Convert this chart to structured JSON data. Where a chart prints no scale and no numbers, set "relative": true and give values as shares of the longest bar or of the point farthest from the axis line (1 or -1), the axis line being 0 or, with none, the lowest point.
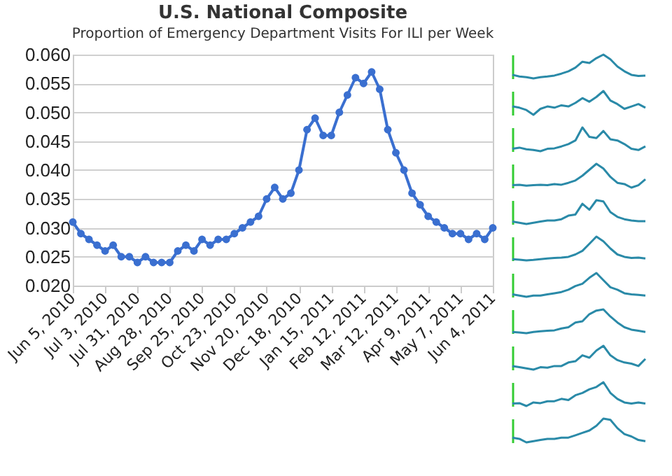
{
  "chart_data": [
    {
      "type": "line",
      "title": "U.S. National Composite",
      "subtitle": "Proportion of Emergency Department Visits For ILI per Week",
      "x": [
        "2010-06-05",
        "2010-06-12",
        "2010-06-19",
        "2010-06-26",
        "2010-07-03",
        "2010-07-10",
        "2010-07-17",
        "2010-07-24",
        "2010-07-31",
        "2010-08-07",
        "2010-08-14",
        "2010-08-21",
        "2010-08-28",
        "2010-09-04",
        "2010-09-11",
        "2010-09-18",
        "2010-09-25",
        "2010-10-02",
        "2010-10-09",
        "2010-10-16",
        "2010-10-23",
        "2010-10-30",
        "2010-11-06",
        "2010-11-13",
        "2010-11-20",
        "2010-11-27",
        "2010-12-04",
        "2010-12-11",
        "2010-12-18",
        "2010-12-25",
        "2011-01-01",
        "2011-01-08",
        "2011-01-15",
        "2011-01-22",
        "2011-01-29",
        "2011-02-05",
        "2011-02-12",
        "2011-02-19",
        "2011-02-26",
        "2011-03-05",
        "2011-03-12",
        "2011-03-19",
        "2011-03-26",
        "2011-04-02",
        "2011-04-09",
        "2011-04-16",
        "2011-04-23",
        "2011-04-30",
        "2011-05-07",
        "2011-05-14",
        "2011-05-21",
        "2011-05-28",
        "2011-06-04"
      ],
      "series": [
        {
          "color": "#3a6fd0",
          "values": [
            0.031,
            0.029,
            0.028,
            0.027,
            0.026,
            0.027,
            0.025,
            0.025,
            0.024,
            0.025,
            0.024,
            0.024,
            0.024,
            0.026,
            0.027,
            0.026,
            0.028,
            0.027,
            0.028,
            0.028,
            0.029,
            0.03,
            0.031,
            0.032,
            0.035,
            0.037,
            0.035,
            0.036,
            0.04,
            0.047,
            0.049,
            0.046,
            0.046,
            0.05,
            0.053,
            0.056,
            0.055,
            0.057,
            0.054,
            0.047,
            0.043,
            0.04,
            0.036,
            0.034,
            0.032,
            0.031,
            0.03,
            0.029,
            0.029,
            0.028,
            0.029,
            0.028,
            0.03
          ]
        }
      ],
      "xlim": [
        "2010-06-05",
        "2011-06-04"
      ],
      "xticks": [
        {
          "value": "2010-06-05",
          "label": "Jun 5, 2010"
        },
        {
          "value": "2010-07-03",
          "label": "Jul 3, 2010"
        },
        {
          "value": "2010-07-31",
          "label": "Jul 31, 2010"
        },
        {
          "value": "2010-08-28",
          "label": "Aug 28, 2010"
        },
        {
          "value": "2010-09-25",
          "label": "Sep 25, 2010"
        },
        {
          "value": "2010-10-23",
          "label": "Oct 23, 2010"
        },
        {
          "value": "2010-11-20",
          "label": "Nov 20, 2010"
        },
        {
          "value": "2010-12-18",
          "label": "Dec 18, 2010"
        },
        {
          "value": "2011-01-15",
          "label": "Jan 15, 2011"
        },
        {
          "value": "2011-02-12",
          "label": "Feb 12, 2011"
        },
        {
          "value": "2011-03-12",
          "label": "Mar 12, 2011"
        },
        {
          "value": "2011-04-09",
          "label": "Apr 9, 2011"
        },
        {
          "value": "2011-05-07",
          "label": "May 7, 2011"
        },
        {
          "value": "2011-06-04",
          "label": "Jun 4, 2011"
        }
      ],
      "ylim": [
        0.02,
        0.06
      ],
      "yticks": [
        {
          "value": 0.02,
          "label": "0.020"
        },
        {
          "value": 0.025,
          "label": "0.025"
        },
        {
          "value": 0.03,
          "label": "0.030"
        },
        {
          "value": 0.035,
          "label": "0.035"
        },
        {
          "value": 0.04,
          "label": "0.040"
        },
        {
          "value": 0.045,
          "label": "0.045"
        },
        {
          "value": 0.05,
          "label": "0.050"
        },
        {
          "value": 0.055,
          "label": "0.055"
        },
        {
          "value": 0.06,
          "label": "0.060"
        }
      ],
      "grid": "y",
      "marker": "circle",
      "line_style": "solid"
    },
    {
      "type": "line",
      "relative": true,
      "categories": [
        null,
        null,
        null,
        null,
        null,
        null,
        null,
        null,
        null,
        null,
        null,
        null,
        null,
        null,
        null,
        null,
        null,
        null,
        null,
        null
      ],
      "series": [
        {
          "color": "#2a8aa8",
          "values": [
            0.15,
            0.08,
            0.05,
            0.0,
            0.05,
            0.08,
            0.12,
            0.2,
            0.3,
            0.45,
            0.7,
            0.65,
            0.85,
            1,
            0.8,
            0.5,
            0.3,
            0.15,
            0.1,
            0.12
          ]
        }
      ]
    },
    {
      "type": "line",
      "relative": true,
      "categories": [
        null,
        null,
        null,
        null,
        null,
        null,
        null,
        null,
        null,
        null,
        null,
        null,
        null,
        null,
        null,
        null,
        null,
        null,
        null,
        null
      ],
      "series": [
        {
          "color": "#2a8aa8",
          "values": [
            0.35,
            0.3,
            0.2,
            0.0,
            0.25,
            0.35,
            0.3,
            0.4,
            0.35,
            0.5,
            0.7,
            0.55,
            0.75,
            1,
            0.6,
            0.45,
            0.25,
            0.35,
            0.45,
            0.3
          ]
        }
      ]
    },
    {
      "type": "line",
      "relative": true,
      "categories": [
        null,
        null,
        null,
        null,
        null,
        null,
        null,
        null,
        null,
        null,
        null,
        null,
        null,
        null,
        null,
        null,
        null,
        null,
        null,
        null
      ],
      "series": [
        {
          "color": "#2a8aa8",
          "values": [
            0.1,
            0.15,
            0.08,
            0.05,
            0.0,
            0.1,
            0.12,
            0.2,
            0.3,
            0.45,
            1,
            0.6,
            0.55,
            0.85,
            0.5,
            0.45,
            0.3,
            0.1,
            0.05,
            0.2
          ]
        }
      ]
    },
    {
      "type": "line",
      "relative": true,
      "categories": [
        null,
        null,
        null,
        null,
        null,
        null,
        null,
        null,
        null,
        null,
        null,
        null,
        null,
        null,
        null,
        null,
        null,
        null,
        null,
        null
      ],
      "series": [
        {
          "color": "#2a8aa8",
          "values": [
            0.1,
            0.12,
            0.08,
            0.1,
            0.12,
            0.1,
            0.15,
            0.12,
            0.2,
            0.3,
            0.5,
            0.75,
            1,
            0.8,
            0.45,
            0.2,
            0.15,
            0.0,
            0.1,
            0.35
          ]
        }
      ]
    },
    {
      "type": "line",
      "relative": true,
      "categories": [
        null,
        null,
        null,
        null,
        null,
        null,
        null,
        null,
        null,
        null,
        null,
        null,
        null,
        null,
        null,
        null,
        null,
        null,
        null,
        null
      ],
      "series": [
        {
          "color": "#2a8aa8",
          "values": [
            0.1,
            0.05,
            0.0,
            0.05,
            0.1,
            0.15,
            0.15,
            0.2,
            0.35,
            0.4,
            0.85,
            0.6,
            1,
            0.95,
            0.5,
            0.3,
            0.2,
            0.15,
            0.12,
            0.12
          ]
        }
      ]
    },
    {
      "type": "line",
      "relative": true,
      "categories": [
        null,
        null,
        null,
        null,
        null,
        null,
        null,
        null,
        null,
        null,
        null,
        null,
        null,
        null,
        null,
        null,
        null,
        null,
        null,
        null
      ],
      "series": [
        {
          "color": "#2a8aa8",
          "values": [
            0.05,
            0.03,
            0.0,
            0.02,
            0.05,
            0.08,
            0.1,
            0.12,
            0.15,
            0.25,
            0.4,
            0.7,
            1,
            0.8,
            0.5,
            0.25,
            0.15,
            0.1,
            0.12,
            0.08
          ]
        }
      ]
    },
    {
      "type": "line",
      "relative": true,
      "categories": [
        null,
        null,
        null,
        null,
        null,
        null,
        null,
        null,
        null,
        null,
        null,
        null,
        null,
        null,
        null,
        null,
        null,
        null,
        null,
        null
      ],
      "series": [
        {
          "color": "#2a8aa8",
          "values": [
            0.1,
            0.05,
            0.0,
            0.05,
            0.05,
            0.1,
            0.15,
            0.2,
            0.3,
            0.45,
            0.55,
            0.8,
            1,
            0.7,
            0.4,
            0.3,
            0.15,
            0.1,
            0.08,
            0.05
          ]
        }
      ]
    },
    {
      "type": "line",
      "relative": true,
      "categories": [
        null,
        null,
        null,
        null,
        null,
        null,
        null,
        null,
        null,
        null,
        null,
        null,
        null,
        null,
        null,
        null,
        null,
        null,
        null,
        null
      ],
      "series": [
        {
          "color": "#2a8aa8",
          "values": [
            0.05,
            0.03,
            0.0,
            0.05,
            0.08,
            0.1,
            0.12,
            0.2,
            0.25,
            0.45,
            0.5,
            0.8,
            0.95,
            1,
            0.7,
            0.45,
            0.25,
            0.15,
            0.1,
            0.05
          ]
        }
      ]
    },
    {
      "type": "line",
      "relative": true,
      "categories": [
        null,
        null,
        null,
        null,
        null,
        null,
        null,
        null,
        null,
        null,
        null,
        null,
        null,
        null,
        null,
        null,
        null,
        null,
        null,
        null
      ],
      "series": [
        {
          "color": "#2a8aa8",
          "values": [
            0.15,
            0.1,
            0.05,
            0.0,
            0.1,
            0.08,
            0.15,
            0.15,
            0.3,
            0.35,
            0.6,
            0.5,
            0.8,
            1,
            0.6,
            0.4,
            0.3,
            0.25,
            0.15,
            0.45
          ]
        }
      ]
    },
    {
      "type": "line",
      "relative": true,
      "categories": [
        null,
        null,
        null,
        null,
        null,
        null,
        null,
        null,
        null,
        null,
        null,
        null,
        null,
        null,
        null,
        null,
        null,
        null,
        null,
        null
      ],
      "series": [
        {
          "color": "#2a8aa8",
          "values": [
            0.1,
            0.12,
            0.0,
            0.15,
            0.12,
            0.2,
            0.2,
            0.3,
            0.25,
            0.45,
            0.55,
            0.7,
            0.8,
            1,
            0.55,
            0.3,
            0.15,
            0.1,
            0.15,
            0.1
          ]
        }
      ]
    },
    {
      "type": "line",
      "relative": true,
      "categories": [
        null,
        null,
        null,
        null,
        null,
        null,
        null,
        null,
        null,
        null,
        null,
        null,
        null,
        null,
        null,
        null,
        null,
        null,
        null,
        null
      ],
      "series": [
        {
          "color": "#2a8aa8",
          "values": [
            0.2,
            0.15,
            0.0,
            0.05,
            0.1,
            0.15,
            0.15,
            0.2,
            0.2,
            0.3,
            0.4,
            0.5,
            0.7,
            1,
            0.95,
            0.6,
            0.35,
            0.25,
            0.1,
            0.05
          ]
        }
      ]
    }
  ]
}
